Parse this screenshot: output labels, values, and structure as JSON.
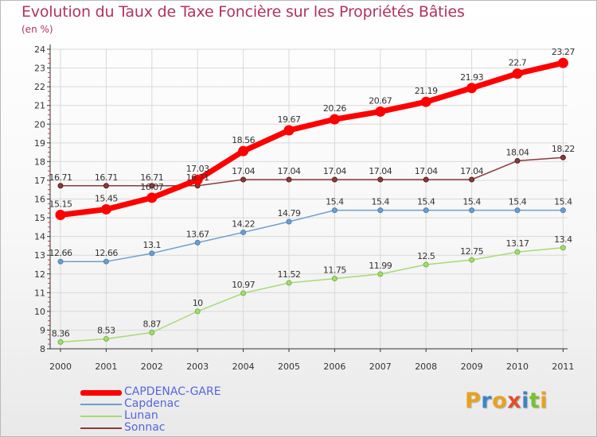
{
  "page": {
    "title": "Evolution du Taux de Taxe Foncière sur les Propriétés Bâties",
    "unit": "(en %)",
    "logo": {
      "letters": [
        "P",
        "r",
        "o",
        "x",
        "i",
        "t",
        "i"
      ],
      "colors": [
        "#e8a21c",
        "#3a85c8",
        "#e8a21c",
        "#e04f2a",
        "#3a85c8",
        "#7cbf2e",
        "#e8a21c"
      ]
    }
  },
  "chart_data": {
    "type": "line",
    "title": "Evolution du Taux de Taxe Foncière sur les Propriétés Bâties",
    "ylabel": "(en %)",
    "xlabel": "",
    "x": [
      "2000",
      "2001",
      "2002",
      "2003",
      "2004",
      "2005",
      "2006",
      "2007",
      "2008",
      "2009",
      "2010",
      "2011"
    ],
    "ylim": [
      8,
      24
    ],
    "yticks": [
      "8",
      "9",
      "10",
      "11",
      "12",
      "13",
      "14",
      "15",
      "16",
      "17",
      "18",
      "19",
      "20",
      "21",
      "22",
      "23",
      "24"
    ],
    "grid": true,
    "legend_position": "bottom-left",
    "series": [
      {
        "name": "CAPDENAC-GARE",
        "color": "#ff0000",
        "values": [
          15.15,
          15.45,
          16.07,
          17.03,
          18.56,
          19.67,
          20.26,
          20.67,
          21.19,
          21.93,
          22.7,
          23.27
        ],
        "labels": [
          "15.15",
          "15.45",
          "16.07",
          "17.03",
          "18.56",
          "19.67",
          "20.26",
          "20.67",
          "21.19",
          "21.93",
          "22.7",
          "23.27"
        ]
      },
      {
        "name": "Capdenac",
        "color": "#6c9fce",
        "values": [
          12.66,
          12.66,
          13.1,
          13.67,
          14.22,
          14.79,
          15.4,
          15.4,
          15.4,
          15.4,
          15.4,
          15.4
        ],
        "labels": [
          "12.66",
          "12.66",
          "13.1",
          "13.67",
          "14.22",
          "14.79",
          "15.4",
          "15.4",
          "15.4",
          "15.4",
          "15.4",
          "15.4"
        ]
      },
      {
        "name": "Lunan",
        "color": "#a6da74",
        "values": [
          8.36,
          8.53,
          8.87,
          10,
          10.97,
          11.52,
          11.75,
          11.99,
          12.5,
          12.75,
          13.17,
          13.4
        ],
        "labels": [
          "8.36",
          "8.53",
          "8.87",
          "10",
          "10.97",
          "11.52",
          "11.75",
          "11.99",
          "12.5",
          "12.75",
          "13.17",
          "13.4"
        ]
      },
      {
        "name": "Sonnac",
        "color": "#8c3a3a",
        "values": [
          16.71,
          16.71,
          16.71,
          16.71,
          17.04,
          17.04,
          17.04,
          17.04,
          17.04,
          17.04,
          18.04,
          18.22
        ],
        "labels": [
          "16.71",
          "16.71",
          "16.71",
          "16.71",
          "17.04",
          "17.04",
          "17.04",
          "17.04",
          "17.04",
          "17.04",
          "18.04",
          "18.22"
        ]
      }
    ]
  }
}
